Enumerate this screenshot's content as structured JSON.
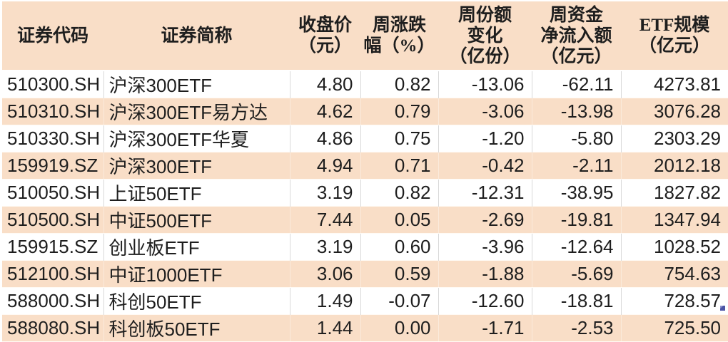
{
  "chart_data": {
    "type": "table",
    "title": "",
    "columns": [
      "证券代码",
      "证券简称",
      "收盘价（元）",
      "周涨跌幅（%）",
      "周份额变化（亿份）",
      "周资金净流入额（亿元）",
      "ETF规模（亿元）"
    ],
    "rows": [
      [
        "510300.SH",
        "沪深300ETF",
        "4.80",
        "0.82",
        "-13.06",
        "-62.11",
        "4273.81"
      ],
      [
        "510310.SH",
        "沪深300ETF易方达",
        "4.62",
        "0.79",
        "-3.06",
        "-13.98",
        "3076.28"
      ],
      [
        "510330.SH",
        "沪深300ETF华夏",
        "4.86",
        "0.75",
        "-1.20",
        "-5.80",
        "2303.29"
      ],
      [
        "159919.SZ",
        "沪深300ETF",
        "4.94",
        "0.71",
        "-0.42",
        "-2.11",
        "2012.18"
      ],
      [
        "510050.SH",
        "上证50ETF",
        "3.19",
        "0.82",
        "-12.31",
        "-38.95",
        "1827.82"
      ],
      [
        "510500.SH",
        "中证500ETF",
        "7.44",
        "0.05",
        "-2.69",
        "-19.81",
        "1347.94"
      ],
      [
        "159915.SZ",
        "创业板ETF",
        "3.19",
        "0.60",
        "-3.96",
        "-12.64",
        "1028.52"
      ],
      [
        "512100.SH",
        "中证1000ETF",
        "3.06",
        "0.59",
        "-1.88",
        "-5.69",
        "754.63"
      ],
      [
        "588000.SH",
        "科创50ETF",
        "1.49",
        "-0.07",
        "-12.60",
        "-18.81",
        "728.57"
      ],
      [
        "588080.SH",
        "科创板50ETF",
        "1.44",
        "0.00",
        "-1.71",
        "-2.53",
        "725.50"
      ]
    ]
  },
  "header": {
    "columns": [
      {
        "name": "security-code",
        "lines": [
          "证券代码"
        ]
      },
      {
        "name": "security-name",
        "lines": [
          "证券简称"
        ]
      },
      {
        "name": "close-price",
        "lines": [
          "收盘价",
          "（元）"
        ]
      },
      {
        "name": "weekly-change-pct",
        "lines": [
          "周涨跌",
          "幅（%）"
        ]
      },
      {
        "name": "weekly-share-change",
        "lines": [
          "周份额",
          "变化",
          "（亿份）"
        ]
      },
      {
        "name": "weekly-net-inflow",
        "lines": [
          "周资金",
          "净流入额",
          "（亿元）"
        ]
      },
      {
        "name": "etf-scale",
        "lines": [
          "ETF规模",
          "（亿元）"
        ]
      }
    ]
  },
  "colors": {
    "header_bg": "#f9dec7",
    "alt_row_bg": "#f9dec7",
    "text": "#1e1e1e",
    "grid_on_white_rows": "#d9d9d9",
    "grid_on_peach_rows": "#fbeadb",
    "corner_marker_blue": "#4c55a6"
  }
}
